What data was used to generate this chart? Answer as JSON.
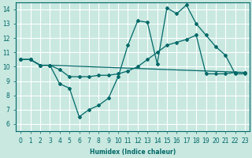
{
  "xlabel": "Humidex (Indice chaleur)",
  "bg_color": "#c8e8e0",
  "grid_color": "#ffffff",
  "line_color": "#006868",
  "xlim": [
    -0.5,
    23.5
  ],
  "ylim": [
    5.5,
    14.5
  ],
  "yticks": [
    6,
    7,
    8,
    9,
    10,
    11,
    12,
    13,
    14
  ],
  "xticks": [
    0,
    1,
    2,
    3,
    4,
    5,
    6,
    7,
    8,
    9,
    10,
    11,
    12,
    13,
    14,
    15,
    16,
    17,
    18,
    19,
    20,
    21,
    22,
    23
  ],
  "curve1_x": [
    0,
    1,
    2,
    3,
    4,
    5,
    6,
    7,
    8,
    9,
    10,
    11,
    12,
    13,
    14,
    15,
    16,
    17,
    18,
    19,
    20,
    21,
    22,
    23
  ],
  "curve1_y": [
    10.5,
    10.5,
    10.1,
    10.1,
    8.8,
    8.5,
    6.5,
    7.0,
    7.3,
    7.8,
    9.3,
    11.5,
    13.2,
    13.1,
    10.2,
    14.1,
    13.7,
    14.3,
    13.0,
    12.2,
    11.4,
    10.8,
    9.5,
    9.5
  ],
  "curve2_x": [
    0,
    1,
    2,
    3,
    4,
    5,
    6,
    7,
    8,
    9,
    10,
    11,
    12,
    13,
    14,
    15,
    16,
    17,
    18,
    19,
    20,
    21,
    22,
    23
  ],
  "curve2_y": [
    10.5,
    10.5,
    10.1,
    10.1,
    9.8,
    9.3,
    9.3,
    9.3,
    9.4,
    9.4,
    9.5,
    9.7,
    10.0,
    10.5,
    11.0,
    11.5,
    11.7,
    11.9,
    12.2,
    9.5,
    9.5,
    9.5,
    9.6,
    9.6
  ],
  "curve3_x": [
    0,
    1,
    2,
    3,
    23
  ],
  "curve3_y": [
    10.5,
    10.5,
    10.1,
    10.1,
    9.6
  ]
}
